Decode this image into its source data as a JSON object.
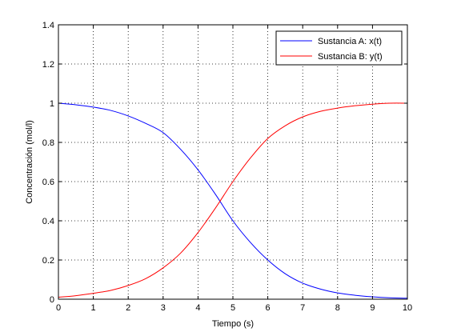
{
  "chart_data": {
    "type": "line",
    "title": "",
    "xlabel": "Tiempo (s)",
    "ylabel": "Concentración (mol/l)",
    "xlim": [
      0,
      10
    ],
    "ylim": [
      0,
      1.4
    ],
    "xticks": [
      "0",
      "1",
      "2",
      "3",
      "4",
      "5",
      "6",
      "7",
      "8",
      "9",
      "10"
    ],
    "yticks": [
      "0",
      "0.2",
      "0.4",
      "0.6",
      "0.8",
      "1",
      "1.2",
      "1.4"
    ],
    "grid": true,
    "legend_position": "top-right",
    "series": [
      {
        "name": "Sustancia A: x(t)",
        "color": "#0000ff",
        "x": [
          0,
          0.5,
          1,
          1.5,
          2,
          2.5,
          3,
          3.5,
          4,
          4.5,
          5,
          5.5,
          6,
          6.5,
          7,
          7.5,
          8,
          8.5,
          9,
          9.5,
          10
        ],
        "y": [
          1.0,
          0.992,
          0.98,
          0.963,
          0.935,
          0.897,
          0.85,
          0.765,
          0.66,
          0.535,
          0.4,
          0.29,
          0.2,
          0.13,
          0.082,
          0.052,
          0.032,
          0.02,
          0.012,
          0.007,
          0.005
        ]
      },
      {
        "name": "Sustancia B: y(t)",
        "color": "#ff0000",
        "x": [
          0,
          0.5,
          1,
          1.5,
          2,
          2.5,
          3,
          3.5,
          4,
          4.5,
          5,
          5.5,
          6,
          6.5,
          7,
          7.5,
          8,
          8.5,
          9,
          9.5,
          10
        ],
        "y": [
          0.01,
          0.018,
          0.03,
          0.045,
          0.07,
          0.105,
          0.16,
          0.235,
          0.34,
          0.465,
          0.6,
          0.72,
          0.82,
          0.885,
          0.93,
          0.958,
          0.975,
          0.987,
          0.995,
          1.0,
          1.0
        ]
      }
    ]
  }
}
